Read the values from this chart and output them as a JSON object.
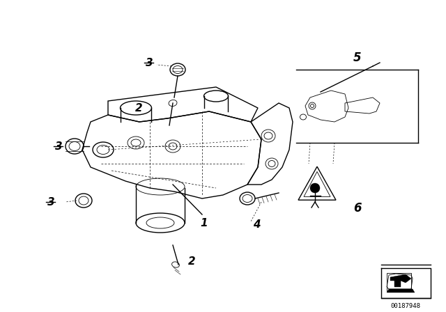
{
  "bg_color": "#ffffff",
  "fig_width": 6.4,
  "fig_height": 4.48,
  "dpi": 100,
  "part_number": "00187948",
  "lw_main": 1.0,
  "lw_thin": 0.6,
  "lw_dot": 0.5
}
